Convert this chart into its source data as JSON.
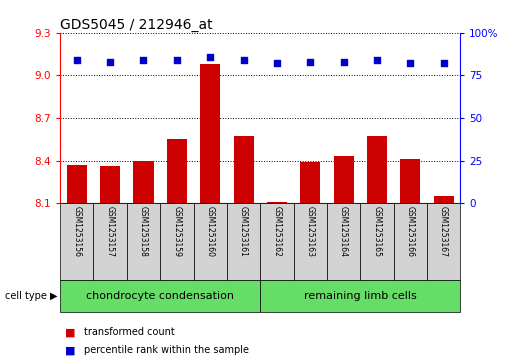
{
  "title": "GDS5045 / 212946_at",
  "samples": [
    "GSM1253156",
    "GSM1253157",
    "GSM1253158",
    "GSM1253159",
    "GSM1253160",
    "GSM1253161",
    "GSM1253162",
    "GSM1253163",
    "GSM1253164",
    "GSM1253165",
    "GSM1253166",
    "GSM1253167"
  ],
  "transformed_count": [
    8.37,
    8.36,
    8.4,
    8.55,
    9.08,
    8.57,
    8.11,
    8.39,
    8.43,
    8.57,
    8.41,
    8.15
  ],
  "percentile_rank": [
    84,
    83,
    84,
    84,
    86,
    84,
    82,
    83,
    83,
    84,
    82,
    82
  ],
  "ylim_left": [
    8.1,
    9.3
  ],
  "ylim_right": [
    0,
    100
  ],
  "yticks_left": [
    8.1,
    8.4,
    8.7,
    9.0,
    9.3
  ],
  "yticks_right": [
    0,
    25,
    50,
    75,
    100
  ],
  "group1_label": "chondrocyte condensation",
  "group2_label": "remaining limb cells",
  "group1_count": 6,
  "cell_type_label": "cell type",
  "legend_bar_label": "transformed count",
  "legend_dot_label": "percentile rank within the sample",
  "bar_color": "#cc0000",
  "dot_color": "#0000cc",
  "group_color": "#66dd66",
  "sample_bg_color": "#d3d3d3",
  "title_fontsize": 10,
  "tick_fontsize": 7.5,
  "sample_fontsize": 5.5,
  "group_fontsize": 8,
  "legend_fontsize": 7
}
